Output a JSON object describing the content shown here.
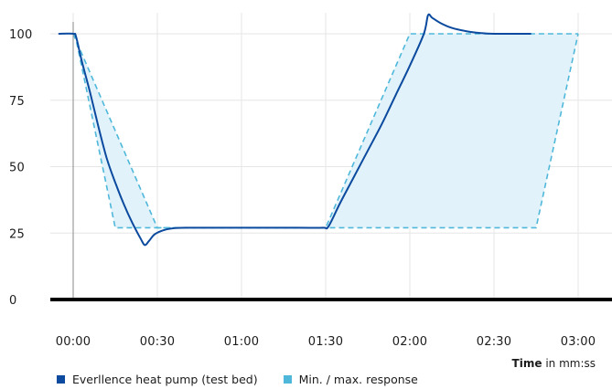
{
  "chart_data": {
    "type": "line",
    "title": "",
    "xlabel_bold": "Time",
    "xlabel_rest": " in mm:ss",
    "ylabel": "",
    "x_unit": "seconds",
    "xlim": [
      -10,
      182
    ],
    "ylim": [
      0,
      107
    ],
    "x_ticks": [
      {
        "value": 0,
        "label": "00:00"
      },
      {
        "value": 30,
        "label": "00:30"
      },
      {
        "value": 60,
        "label": "01:00"
      },
      {
        "value": 90,
        "label": "01:30"
      },
      {
        "value": 120,
        "label": "02:00"
      },
      {
        "value": 150,
        "label": "02:30"
      },
      {
        "value": 180,
        "label": "03:00"
      }
    ],
    "y_ticks": [
      {
        "value": 0,
        "label": "0"
      },
      {
        "value": 25,
        "label": "25"
      },
      {
        "value": 50,
        "label": "50"
      },
      {
        "value": 75,
        "label": "75"
      },
      {
        "value": 100,
        "label": "100"
      }
    ],
    "grid": true,
    "legend_position": "bottom-left",
    "series": [
      {
        "name": "Everllence heat pump (test bed)",
        "color": "#0b4a9e",
        "style": "solid",
        "points": [
          [
            -5,
            100
          ],
          [
            0,
            100
          ],
          [
            1,
            99
          ],
          [
            3,
            90
          ],
          [
            6,
            78
          ],
          [
            9,
            65
          ],
          [
            12,
            53
          ],
          [
            15,
            44
          ],
          [
            18,
            36
          ],
          [
            21,
            29
          ],
          [
            24,
            23
          ],
          [
            25.5,
            20.5
          ],
          [
            27,
            22
          ],
          [
            29,
            24.5
          ],
          [
            32,
            26
          ],
          [
            35,
            26.7
          ],
          [
            40,
            27
          ],
          [
            60,
            27
          ],
          [
            80,
            27
          ],
          [
            89,
            27
          ],
          [
            91,
            27.5
          ],
          [
            95,
            36
          ],
          [
            100,
            46
          ],
          [
            105,
            56
          ],
          [
            110,
            66
          ],
          [
            115,
            77
          ],
          [
            120,
            88
          ],
          [
            125,
            100
          ],
          [
            126.5,
            107
          ],
          [
            128,
            106
          ],
          [
            131,
            104
          ],
          [
            135,
            102.2
          ],
          [
            140,
            101
          ],
          [
            145,
            100.3
          ],
          [
            150,
            100
          ],
          [
            163,
            100
          ]
        ]
      },
      {
        "name": "Min. / max. response",
        "color": "#4fb8da",
        "fill": "#e1f2fa",
        "style": "dashed",
        "upper": [
          [
            0,
            100
          ],
          [
            1,
            98
          ],
          [
            15,
            27
          ],
          [
            89,
            27
          ],
          [
            90,
            27
          ],
          [
            120,
            100
          ],
          [
            180,
            100
          ]
        ],
        "lower": [
          [
            0,
            100
          ],
          [
            30,
            27
          ],
          [
            90,
            27
          ],
          [
            165,
            27
          ],
          [
            180,
            100
          ]
        ]
      }
    ]
  }
}
